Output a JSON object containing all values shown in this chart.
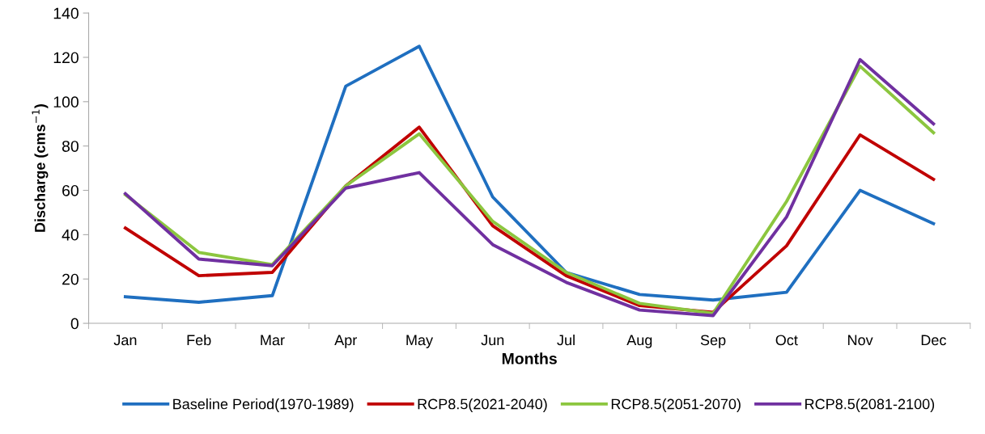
{
  "chart_data": {
    "type": "line",
    "xlabel": "Months",
    "ylabel": "Discharge (cms$^{−1}$)",
    "categories": [
      "Jan",
      "Feb",
      "Mar",
      "Apr",
      "May",
      "Jun",
      "Jul",
      "Aug",
      "Sep",
      "Oct",
      "Nov",
      "Dec"
    ],
    "series": [
      {
        "name": "Baseline Period(1970-1989)",
        "color": "#1f6fc0",
        "values": [
          12,
          9.5,
          12.5,
          107,
          125,
          57,
          23,
          13,
          10.5,
          14,
          60,
          45
        ]
      },
      {
        "name": "RCP8.5(2021-2040)",
        "color": "#c00000",
        "values": [
          43,
          21.5,
          23,
          62,
          88.5,
          44,
          21.5,
          8,
          5,
          35,
          85,
          65
        ]
      },
      {
        "name": "RCP8.5(2051-2070)",
        "color": "#8cc63f",
        "values": [
          58,
          32,
          26.5,
          62,
          85.5,
          46,
          23,
          9,
          4.5,
          55,
          116,
          86
        ]
      },
      {
        "name": "RCP8.5(2081-2100)",
        "color": "#7030a0",
        "values": [
          58.5,
          29,
          26,
          61,
          68,
          35.5,
          18.5,
          6,
          3.5,
          48,
          119,
          90
        ]
      }
    ],
    "ylim": [
      0,
      140
    ],
    "yticks": [
      0,
      20,
      40,
      60,
      80,
      100,
      120,
      140
    ],
    "grid": false,
    "legend": "bottom"
  }
}
